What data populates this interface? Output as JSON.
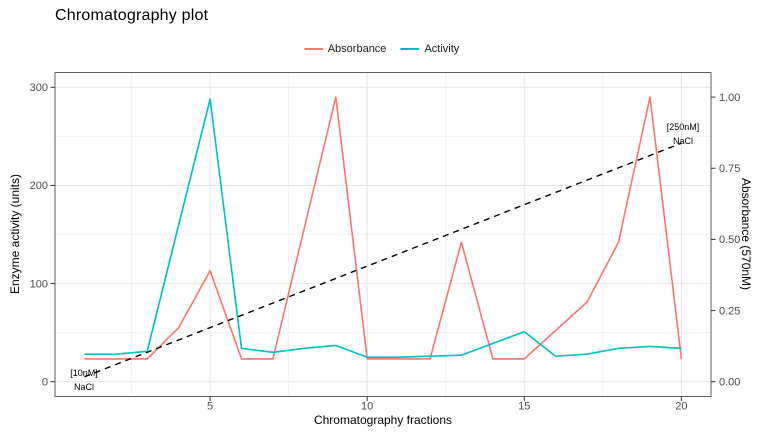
{
  "title": "Chromatography plot",
  "legend": {
    "items": [
      {
        "label": "Absorbance",
        "color": "#F8766D"
      },
      {
        "label": "Activity",
        "color": "#00BFC4"
      }
    ]
  },
  "axes": {
    "left": {
      "title": "Enzyme activity (units)",
      "ticks": [
        "0",
        "100",
        "200",
        "300"
      ]
    },
    "right": {
      "title": "Absorbance (570nM)",
      "ticks": [
        "0.00",
        "0.25",
        "0.50",
        "0.75",
        "1.00"
      ]
    },
    "bottom": {
      "title": "Chromatography fractions",
      "ticks": [
        "5",
        "10",
        "15",
        "20"
      ]
    }
  },
  "annotations": [
    {
      "name": "nacl-gradient-start",
      "lines": [
        "[10nM]",
        "NaCl"
      ],
      "fraction": 1
    },
    {
      "name": "nacl-gradient-end",
      "lines": [
        "[250nM]",
        "NaCl"
      ],
      "fraction": 20
    }
  ],
  "colors": {
    "grid_major": "#e4e4e4",
    "grid_minor": "#f0f0f0",
    "panel_border": "#5f5f5f",
    "tick": "#333333",
    "tick_label": "#4d4d4d",
    "absorbance": "#F8766D",
    "activity": "#00BFC4",
    "nacl_line": "#000000"
  },
  "chart_data": {
    "type": "line",
    "title": "Chromatography plot",
    "xlabel": "Chromatography fractions",
    "ylabel_left": "Enzyme activity (units)",
    "ylabel_right": "Absorbance (570nM)",
    "legend_position": "top-center",
    "grid": true,
    "x": [
      1,
      2,
      3,
      4,
      5,
      6,
      7,
      8,
      9,
      10,
      11,
      12,
      13,
      14,
      15,
      16,
      17,
      18,
      19,
      20
    ],
    "x_range": [
      1,
      20
    ],
    "x_ticks": [
      5,
      10,
      15,
      20
    ],
    "x_minor_ticks": [
      2.5,
      7.5,
      12.5,
      17.5
    ],
    "y_left_range": [
      0,
      300
    ],
    "y_left_ticks": [
      0,
      100,
      200,
      300
    ],
    "y_left_minor_ticks": [
      50,
      150,
      250
    ],
    "y_right_range": [
      0,
      1.03
    ],
    "y_right_ticks": [
      0,
      0.25,
      0.5,
      0.75,
      1.0
    ],
    "right_axis_scale_factor": 290,
    "series": [
      {
        "name": "Absorbance",
        "axis": "right",
        "style": "solid",
        "color": "#F8766D",
        "values": [
          0.08,
          0.08,
          0.08,
          0.19,
          0.39,
          0.08,
          0.08,
          0.54,
          1.0,
          0.08,
          0.08,
          0.08,
          0.49,
          0.08,
          0.08,
          0.18,
          0.28,
          0.49,
          1.0,
          0.08
        ]
      },
      {
        "name": "Activity",
        "axis": "left",
        "style": "solid",
        "color": "#00BFC4",
        "values": [
          28,
          28,
          31,
          160,
          288,
          34,
          30,
          34,
          37,
          25,
          25,
          26,
          27,
          39,
          51,
          26,
          28,
          34,
          36,
          34
        ]
      },
      {
        "name": "NaCl gradient",
        "axis": "left",
        "style": "dashed",
        "color": "#000000",
        "x": [
          1,
          20
        ],
        "values": [
          5,
          243
        ],
        "start_label": "[10nM] NaCl",
        "end_label": "[250nM] NaCl"
      }
    ]
  }
}
